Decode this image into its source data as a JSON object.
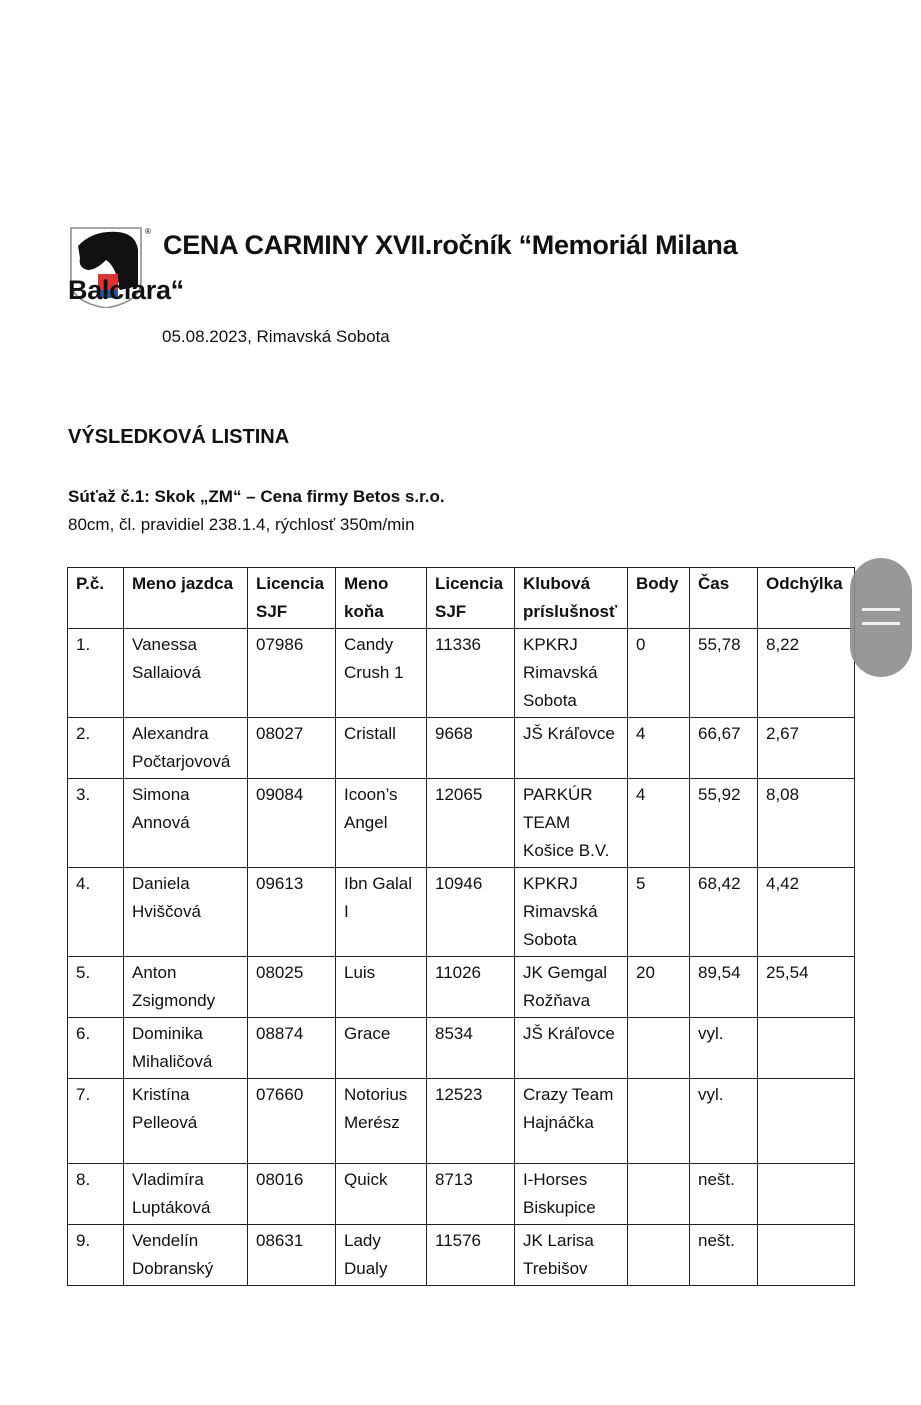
{
  "header": {
    "logo": "horse-head-shield-logo",
    "title_line1": "CENA CARMINY XVII.ročník “Memoriál Milana",
    "title_line2": "Balciara“",
    "date_place": "05.08.2023, Rimavská Sobota"
  },
  "heading": "VÝSLEDKOVÁ LISTINA",
  "competition": {
    "title": "Súťaž č.1: Skok „ZM“ – Cena firmy Betos s.r.o.",
    "details": "80cm, čl. pravidiel 238.1.4, rýchlosť 350m/min"
  },
  "table": {
    "columns": [
      "P.č.",
      "Meno jazdca",
      "Licencia SJF",
      "Meno koňa",
      "Licencia SJF",
      "Klubová príslušnosť",
      "Body",
      "Čas",
      "Odchýlka"
    ],
    "rows": [
      [
        "1.",
        "Vanessa Sallaiová",
        "07986",
        "Candy Crush 1",
        "11336",
        "KPKRJ Rimavská Sobota",
        "0",
        "55,78",
        "8,22"
      ],
      [
        "2.",
        "Alexandra Počtarjovová",
        "08027",
        "Cristall",
        "9668",
        "JŠ Kráľovce",
        "4",
        "66,67",
        "2,67"
      ],
      [
        "3.",
        "Simona Annová",
        "09084",
        "Icoon’s Angel",
        "12065",
        "PARKÚR TEAM Košice B.V.",
        "4",
        "55,92",
        "8,08"
      ],
      [
        "4.",
        "Daniela Hviščová",
        "09613",
        "Ibn Galal I",
        "10946",
        "KPKRJ Rimavská Sobota",
        "5",
        "68,42",
        "4,42"
      ],
      [
        "5.",
        "Anton Zsigmondy",
        "08025",
        "Luis",
        "11026",
        "JK Gemgal Rožňava",
        "20",
        "89,54",
        "25,54"
      ],
      [
        "6.",
        "Dominika Mihaličová",
        "08874",
        "Grace",
        "8534",
        "JŠ Kráľovce",
        "",
        "vyl.",
        ""
      ],
      [
        "7.",
        "Kristína Pelleová",
        "07660",
        "Notorius Merész",
        "12523",
        "Crazy Team Hajnáčka",
        "",
        "vyl.",
        ""
      ],
      [
        "8.",
        "Vladimíra Luptáková",
        "08016",
        "Quick",
        "8713",
        "I-Horses Biskupice",
        "",
        "nešt.",
        ""
      ],
      [
        "9.",
        "Vendelín Dobranský",
        "08631",
        "Lady Dualy",
        "11576",
        "JK Larisa Trebišov",
        "",
        "nešt.",
        ""
      ]
    ]
  },
  "scrollbar": {
    "icon": "drag-handle-icon"
  }
}
